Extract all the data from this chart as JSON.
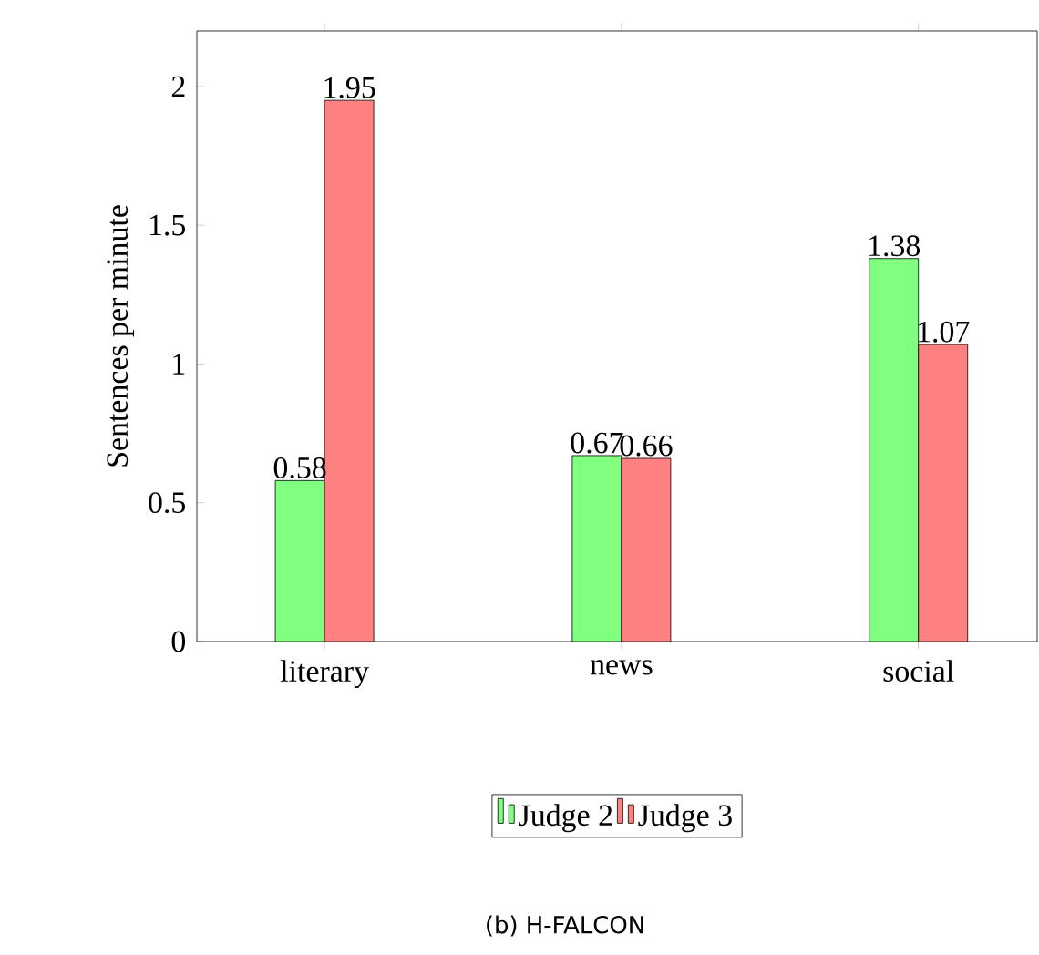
{
  "chart_data": {
    "type": "bar",
    "ylabel": "Sentences per minute",
    "categories": [
      "literary",
      "news",
      "social"
    ],
    "series": [
      {
        "name": "Judge 2",
        "color": "#80ff80",
        "values": [
          0.58,
          0.67,
          1.38
        ]
      },
      {
        "name": "Judge 3",
        "color": "#ff8080",
        "values": [
          1.95,
          0.66,
          1.07
        ]
      }
    ],
    "ylim": [
      0,
      2.2
    ],
    "yticks": [
      0,
      0.5,
      1,
      1.5,
      2
    ],
    "data_labels": true,
    "legend": "bottom",
    "grid": false,
    "annotations": [
      "(b) H-FALCON"
    ]
  }
}
